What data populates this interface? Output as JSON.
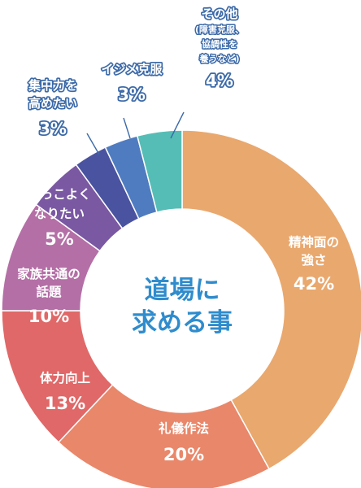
{
  "chart_data": {
    "type": "pie",
    "style": "donut",
    "title_lines": [
      "道場に",
      "求める事"
    ],
    "slices": [
      {
        "label_lines": [
          "精神面の",
          "強さ"
        ],
        "value": 42,
        "display": "42%",
        "color": "#e9a86e"
      },
      {
        "label_lines": [
          "礼儀作法"
        ],
        "value": 20,
        "display": "20%",
        "color": "#e9876a"
      },
      {
        "label_lines": [
          "体力向上"
        ],
        "value": 13,
        "display": "13%",
        "color": "#e06868"
      },
      {
        "label_lines": [
          "家族共通の",
          "話題"
        ],
        "value": 10,
        "display": "10%",
        "color": "#b46fa6"
      },
      {
        "label_lines": [
          "かっこよく",
          "なりたい"
        ],
        "value": 5,
        "display": "5%",
        "color": "#7a58a2"
      },
      {
        "label_lines": [
          "集中力を",
          "高めたい"
        ],
        "value": 3,
        "display": "3%",
        "color": "#4a53a0"
      },
      {
        "label_lines": [
          "イジメ克服"
        ],
        "value": 3,
        "display": "3%",
        "color": "#4f7cc0"
      },
      {
        "label_lines": [
          "その他"
        ],
        "sub_lines": [
          "(障害克服、",
          "協調性を",
          "養うなど)"
        ],
        "value": 4,
        "display": "4%",
        "color": "#55bdb6"
      }
    ],
    "label_outline_color": "#3c6aa8",
    "title_color": "#2f8ccd"
  }
}
